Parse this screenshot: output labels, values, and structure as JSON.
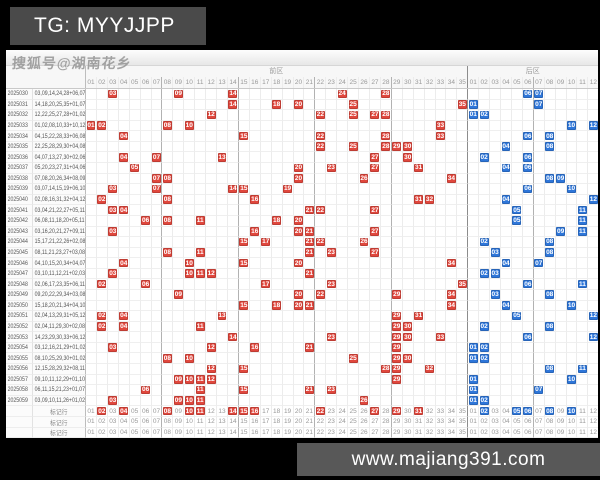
{
  "title": "TG: MYYJJPP",
  "watermark": "搜狐号@湖南花乡",
  "url_bar": "www.majiang391.com",
  "colors": {
    "front_mark": "#e0473d",
    "back_mark": "#2e76d9",
    "title_bg": "#4a4a4a",
    "url_bar_bg": "#585858"
  },
  "chart_data": {
    "type": "table",
    "front_label": "前区",
    "back_label": "后区",
    "front_count": 35,
    "back_count": 12,
    "draws": [
      {
        "issue": "2025030",
        "front": [
          3,
          9,
          14,
          24,
          28
        ],
        "back": [
          6,
          7
        ]
      },
      {
        "issue": "2025031",
        "front": [
          14,
          18,
          20,
          25,
          35
        ],
        "back": [
          1,
          7
        ]
      },
      {
        "issue": "2025032",
        "front": [
          12,
          22,
          25,
          27,
          28
        ],
        "back": [
          1,
          2
        ]
      },
      {
        "issue": "2025033",
        "front": [
          1,
          2,
          8,
          10,
          33
        ],
        "back": [
          10,
          12
        ]
      },
      {
        "issue": "2025034",
        "front": [
          4,
          15,
          22,
          28,
          33
        ],
        "back": [
          6,
          8
        ]
      },
      {
        "issue": "2025035",
        "front": [
          22,
          25,
          28,
          29,
          30
        ],
        "back": [
          4,
          8
        ]
      },
      {
        "issue": "2025036",
        "front": [
          4,
          7,
          13,
          27,
          30
        ],
        "back": [
          2,
          6
        ]
      },
      {
        "issue": "2025037",
        "front": [
          5,
          20,
          23,
          27,
          31
        ],
        "back": [
          4,
          6
        ]
      },
      {
        "issue": "2025038",
        "front": [
          7,
          8,
          20,
          26,
          34
        ],
        "back": [
          8,
          9
        ]
      },
      {
        "issue": "2025039",
        "front": [
          3,
          7,
          14,
          15,
          19
        ],
        "back": [
          6,
          10
        ]
      },
      {
        "issue": "2025040",
        "front": [
          2,
          8,
          16,
          31,
          32
        ],
        "back": [
          4,
          12
        ]
      },
      {
        "issue": "2025041",
        "front": [
          3,
          4,
          21,
          22,
          27
        ],
        "back": [
          5,
          11
        ]
      },
      {
        "issue": "2025042",
        "front": [
          6,
          8,
          11,
          18,
          20
        ],
        "back": [
          5,
          11
        ]
      },
      {
        "issue": "2025043",
        "front": [
          3,
          16,
          20,
          21,
          27
        ],
        "back": [
          9,
          11
        ]
      },
      {
        "issue": "2025044",
        "front": [
          15,
          17,
          21,
          22,
          26
        ],
        "back": [
          2,
          8
        ]
      },
      {
        "issue": "2025045",
        "front": [
          8,
          11,
          21,
          23,
          27
        ],
        "back": [
          3,
          8
        ]
      },
      {
        "issue": "2025046",
        "front": [
          4,
          10,
          15,
          20,
          34
        ],
        "back": [
          4,
          7
        ]
      },
      {
        "issue": "2025047",
        "front": [
          3,
          10,
          11,
          12,
          21
        ],
        "back": [
          2,
          3
        ]
      },
      {
        "issue": "2025048",
        "front": [
          2,
          6,
          17,
          23,
          35
        ],
        "back": [
          6,
          11
        ]
      },
      {
        "issue": "2025049",
        "front": [
          9,
          20,
          22,
          29,
          34
        ],
        "back": [
          3,
          8
        ]
      },
      {
        "issue": "2025050",
        "front": [
          15,
          18,
          20,
          21,
          34
        ],
        "back": [
          4,
          10
        ]
      },
      {
        "issue": "2025051",
        "front": [
          2,
          4,
          13,
          29,
          31
        ],
        "back": [
          5,
          12
        ]
      },
      {
        "issue": "2025052",
        "front": [
          2,
          4,
          11,
          29,
          30
        ],
        "back": [
          2,
          8
        ]
      },
      {
        "issue": "2025053",
        "front": [
          14,
          23,
          29,
          30,
          33
        ],
        "back": [
          6,
          12
        ]
      },
      {
        "issue": "2025054",
        "front": [
          3,
          12,
          16,
          21,
          29
        ],
        "back": [
          1,
          2
        ]
      },
      {
        "issue": "2025055",
        "front": [
          8,
          10,
          25,
          29,
          30
        ],
        "back": [
          1,
          2
        ]
      },
      {
        "issue": "2025056",
        "front": [
          12,
          15,
          28,
          29,
          32
        ],
        "back": [
          8,
          11
        ]
      },
      {
        "issue": "2025057",
        "front": [
          9,
          10,
          11,
          12,
          29
        ],
        "back": [
          1,
          10
        ]
      },
      {
        "issue": "2025058",
        "front": [
          6,
          11,
          15,
          21,
          23
        ],
        "back": [
          1,
          7
        ]
      },
      {
        "issue": "2025059",
        "front": [
          3,
          9,
          10,
          11,
          26
        ],
        "back": [
          1,
          2
        ]
      }
    ],
    "marker_rows": [
      {
        "label": "标记行",
        "front_marks": [
          2,
          4,
          8,
          10,
          11,
          14,
          15,
          16,
          22,
          27,
          29,
          31
        ],
        "back_marks": [
          2,
          5,
          6,
          8,
          10
        ]
      },
      {
        "label": "标记行",
        "front_marks": [],
        "back_marks": []
      },
      {
        "label": "标记行",
        "front_marks": [],
        "back_marks": []
      }
    ]
  }
}
